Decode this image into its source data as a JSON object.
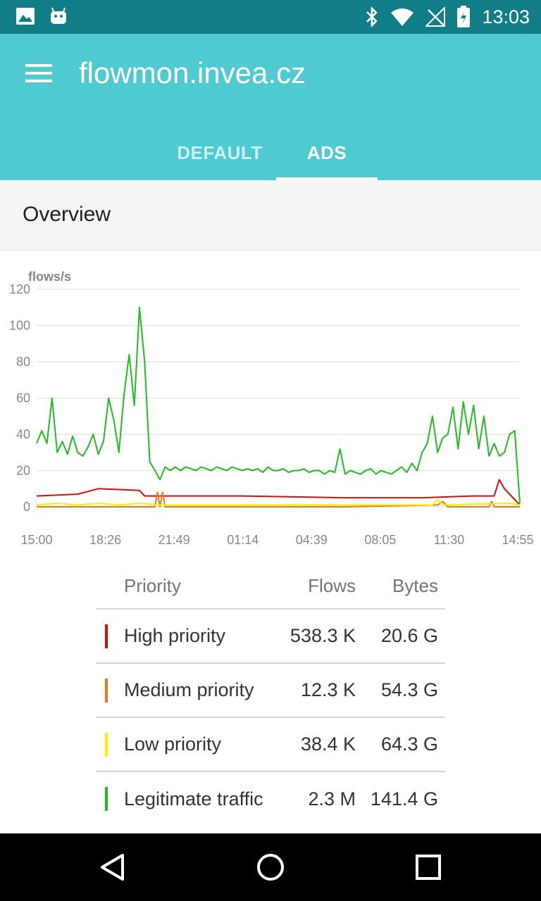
{
  "status_bar": {
    "time": "13:03",
    "left_icons": [
      "image-icon",
      "android-icon"
    ],
    "right_icons": [
      "bluetooth-icon",
      "wifi-icon",
      "signal-icon",
      "battery-icon"
    ]
  },
  "app_bar": {
    "title": "flowmon.invea.cz",
    "background": "#4ecad0",
    "tabs": [
      {
        "label": "DEFAULT",
        "selected": false
      },
      {
        "label": "ADS",
        "selected": true
      }
    ]
  },
  "overview": {
    "title": "Overview"
  },
  "chart_data": {
    "type": "line",
    "ylabel": "flows/s",
    "ylim": [
      0,
      120
    ],
    "y_ticks": [
      "0",
      "20",
      "40",
      "60",
      "80",
      "100",
      "120"
    ],
    "x_ticks": [
      "15:00",
      "18:26",
      "21:49",
      "01:14",
      "04:39",
      "08:05",
      "11:30",
      "14:55"
    ],
    "grid": true,
    "series": [
      {
        "color": "#22bb22",
        "points": [
          [
            0,
            35
          ],
          [
            1,
            42
          ],
          [
            2,
            35
          ],
          [
            3,
            60
          ],
          [
            4,
            30
          ],
          [
            5,
            36
          ],
          [
            6,
            29
          ],
          [
            7,
            39
          ],
          [
            8,
            30
          ],
          [
            9,
            28
          ],
          [
            10,
            33
          ],
          [
            11,
            40
          ],
          [
            12,
            29
          ],
          [
            13,
            36
          ],
          [
            14,
            60
          ],
          [
            15,
            48
          ],
          [
            16,
            30
          ],
          [
            17,
            62
          ],
          [
            18,
            84
          ],
          [
            19,
            56
          ],
          [
            20,
            110
          ],
          [
            21,
            80
          ],
          [
            22,
            25
          ],
          [
            23,
            20
          ],
          [
            24,
            15
          ],
          [
            25,
            22
          ],
          [
            26,
            20
          ],
          [
            27,
            22
          ],
          [
            28,
            20
          ],
          [
            29,
            22
          ],
          [
            30,
            21
          ],
          [
            31,
            20
          ],
          [
            32,
            22
          ],
          [
            33,
            21
          ],
          [
            34,
            20
          ],
          [
            35,
            22
          ],
          [
            36,
            21
          ],
          [
            37,
            20
          ],
          [
            38,
            22
          ],
          [
            39,
            21
          ],
          [
            40,
            20
          ],
          [
            41,
            21
          ],
          [
            42,
            20
          ],
          [
            43,
            21
          ],
          [
            44,
            19
          ],
          [
            45,
            22
          ],
          [
            46,
            20
          ],
          [
            47,
            20
          ],
          [
            48,
            21
          ],
          [
            49,
            19
          ],
          [
            50,
            20
          ],
          [
            51,
            20
          ],
          [
            52,
            21
          ],
          [
            53,
            19
          ],
          [
            54,
            20
          ],
          [
            55,
            20
          ],
          [
            56,
            18
          ],
          [
            57,
            20
          ],
          [
            58,
            19
          ],
          [
            59,
            32
          ],
          [
            60,
            18
          ],
          [
            61,
            20
          ],
          [
            62,
            19
          ],
          [
            63,
            18
          ],
          [
            64,
            20
          ],
          [
            65,
            21
          ],
          [
            66,
            18
          ],
          [
            67,
            20
          ],
          [
            68,
            19
          ],
          [
            69,
            18
          ],
          [
            70,
            20
          ],
          [
            71,
            22
          ],
          [
            72,
            19
          ],
          [
            73,
            24
          ],
          [
            74,
            20
          ],
          [
            75,
            30
          ],
          [
            76,
            35
          ],
          [
            77,
            50
          ],
          [
            78,
            30
          ],
          [
            79,
            38
          ],
          [
            80,
            40
          ],
          [
            81,
            55
          ],
          [
            82,
            32
          ],
          [
            83,
            58
          ],
          [
            84,
            40
          ],
          [
            85,
            56
          ],
          [
            86,
            32
          ],
          [
            87,
            50
          ],
          [
            88,
            28
          ],
          [
            89,
            35
          ],
          [
            90,
            28
          ],
          [
            91,
            30
          ],
          [
            92,
            40
          ],
          [
            93,
            42
          ],
          [
            94,
            2
          ]
        ]
      },
      {
        "color": "#cc1111",
        "points": [
          [
            0,
            6
          ],
          [
            8,
            7
          ],
          [
            12,
            10
          ],
          [
            20,
            9
          ],
          [
            21,
            6
          ],
          [
            40,
            6
          ],
          [
            60,
            5
          ],
          [
            75,
            5
          ],
          [
            85,
            6
          ],
          [
            89,
            6
          ],
          [
            90,
            15
          ],
          [
            91,
            10
          ],
          [
            92,
            7
          ],
          [
            94,
            1
          ]
        ]
      },
      {
        "color": "#ee7722",
        "points": [
          [
            0,
            0
          ],
          [
            23,
            0
          ],
          [
            23.5,
            8
          ],
          [
            24,
            0
          ],
          [
            24.5,
            8
          ],
          [
            25,
            0
          ],
          [
            60,
            0
          ],
          [
            78,
            1
          ],
          [
            79,
            3
          ],
          [
            80,
            0
          ],
          [
            88,
            0
          ],
          [
            88.5,
            3
          ],
          [
            89,
            0
          ],
          [
            94,
            0
          ]
        ]
      },
      {
        "color": "#ffee00",
        "points": [
          [
            0,
            1
          ],
          [
            4,
            2
          ],
          [
            8,
            1
          ],
          [
            12,
            2
          ],
          [
            16,
            1
          ],
          [
            20,
            2
          ],
          [
            24,
            1
          ],
          [
            40,
            1
          ],
          [
            60,
            1
          ],
          [
            77,
            1
          ],
          [
            78,
            4
          ],
          [
            79,
            1
          ],
          [
            92,
            2
          ],
          [
            94,
            1
          ]
        ]
      }
    ]
  },
  "priority_table": {
    "headers": {
      "priority": "Priority",
      "flows": "Flows",
      "bytes": "Bytes"
    },
    "rows": [
      {
        "name": "High priority",
        "flows": "538.3 K",
        "bytes": "20.6 G",
        "color": "#cc1111"
      },
      {
        "name": "Medium priority",
        "flows": "12.3 K",
        "bytes": "54.3 G",
        "color": "#ee7722"
      },
      {
        "name": "Low priority",
        "flows": "38.4 K",
        "bytes": "64.3 G",
        "color": "#ffee00"
      },
      {
        "name": "Legitimate traffic",
        "flows": "2.3 M",
        "bytes": "141.4 G",
        "color": "#22bb22"
      }
    ]
  },
  "nav_bar": {
    "buttons": [
      "back-icon",
      "home-icon",
      "recents-icon"
    ]
  }
}
